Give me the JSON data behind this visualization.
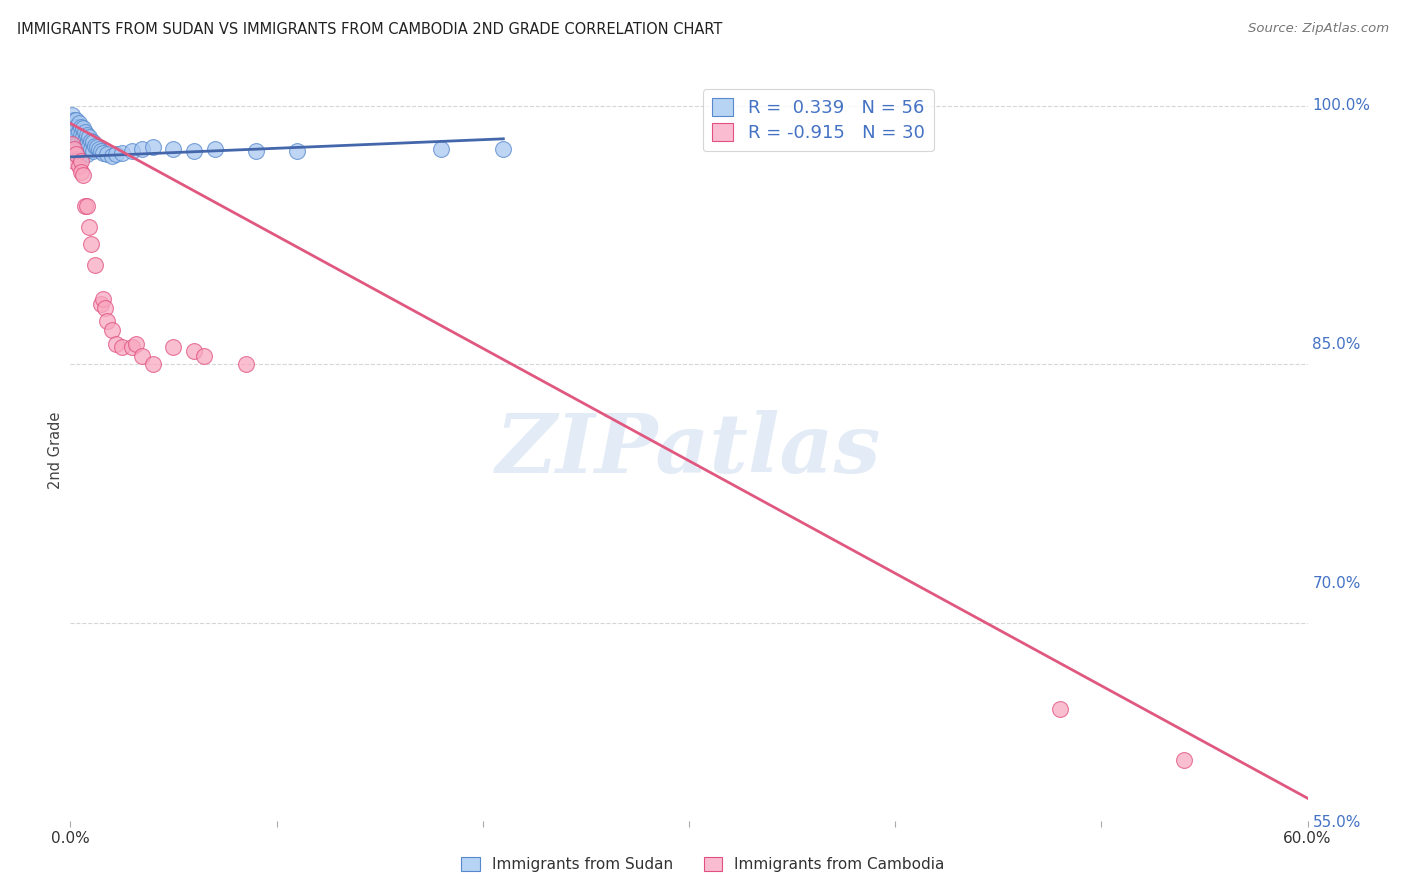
{
  "title": "IMMIGRANTS FROM SUDAN VS IMMIGRANTS FROM CAMBODIA 2ND GRADE CORRELATION CHART",
  "source": "Source: ZipAtlas.com",
  "ylabel": "2nd Grade",
  "yaxis_labels": [
    "100.0%",
    "85.0%",
    "70.0%",
    "55.0%"
  ],
  "yaxis_values": [
    1.0,
    0.85,
    0.7,
    0.55
  ],
  "xlim": [
    0.0,
    0.6
  ],
  "ylim": [
    0.585,
    1.015
  ],
  "sudan_fill_color": "#a8c8f0",
  "sudan_edge_color": "#5588cc",
  "cambodia_fill_color": "#f8a8c0",
  "cambodia_edge_color": "#e05080",
  "sudan_line_color": "#4466aa",
  "cambodia_line_color": "#e05880",
  "legend_sudan_fill": "#b8d4f4",
  "legend_cambodia_fill": "#f9bcd0",
  "legend1_R": "R =  0.339",
  "legend1_N": "N = 56",
  "legend2_R": "R = -0.915",
  "legend2_N": "N = 30",
  "watermark_text": "ZIPatlas",
  "background_color": "#ffffff",
  "grid_color": "#cccccc",
  "right_tick_color": "#4472c4",
  "sudan_scatter_x": [
    0.0005,
    0.001,
    0.001,
    0.001,
    0.002,
    0.002,
    0.002,
    0.002,
    0.003,
    0.003,
    0.003,
    0.003,
    0.003,
    0.004,
    0.004,
    0.004,
    0.004,
    0.004,
    0.005,
    0.005,
    0.005,
    0.005,
    0.006,
    0.006,
    0.006,
    0.007,
    0.007,
    0.007,
    0.008,
    0.008,
    0.008,
    0.009,
    0.009,
    0.01,
    0.01,
    0.011,
    0.011,
    0.012,
    0.013,
    0.014,
    0.015,
    0.016,
    0.018,
    0.02,
    0.022,
    0.025,
    0.03,
    0.035,
    0.04,
    0.05,
    0.06,
    0.07,
    0.09,
    0.11,
    0.18,
    0.21
  ],
  "sudan_scatter_y": [
    0.99,
    0.995,
    0.985,
    0.978,
    0.992,
    0.987,
    0.98,
    0.975,
    0.992,
    0.988,
    0.983,
    0.978,
    0.972,
    0.99,
    0.985,
    0.98,
    0.975,
    0.97,
    0.988,
    0.983,
    0.978,
    0.972,
    0.987,
    0.982,
    0.976,
    0.985,
    0.98,
    0.975,
    0.983,
    0.978,
    0.972,
    0.982,
    0.977,
    0.98,
    0.975,
    0.979,
    0.974,
    0.977,
    0.976,
    0.975,
    0.974,
    0.973,
    0.972,
    0.971,
    0.972,
    0.973,
    0.974,
    0.975,
    0.976,
    0.975,
    0.974,
    0.975,
    0.974,
    0.974,
    0.975,
    0.975
  ],
  "cambodia_scatter_x": [
    0.001,
    0.002,
    0.002,
    0.003,
    0.004,
    0.005,
    0.005,
    0.006,
    0.007,
    0.008,
    0.009,
    0.01,
    0.012,
    0.015,
    0.016,
    0.017,
    0.018,
    0.02,
    0.022,
    0.025,
    0.03,
    0.032,
    0.035,
    0.04,
    0.05,
    0.06,
    0.065,
    0.085,
    0.48,
    0.54
  ],
  "cambodia_scatter_y": [
    0.978,
    0.975,
    0.968,
    0.972,
    0.965,
    0.968,
    0.962,
    0.96,
    0.942,
    0.942,
    0.93,
    0.92,
    0.908,
    0.885,
    0.888,
    0.883,
    0.875,
    0.87,
    0.862,
    0.86,
    0.86,
    0.862,
    0.855,
    0.85,
    0.86,
    0.858,
    0.855,
    0.85,
    0.65,
    0.62
  ],
  "sudan_trend_x0": 0.0,
  "sudan_trend_x1": 0.21,
  "sudan_trend_y0": 0.9705,
  "sudan_trend_y1": 0.981,
  "cambodia_trend_x0": 0.0,
  "cambodia_trend_x1": 0.6,
  "cambodia_trend_y0": 0.99,
  "cambodia_trend_y1": 0.598
}
